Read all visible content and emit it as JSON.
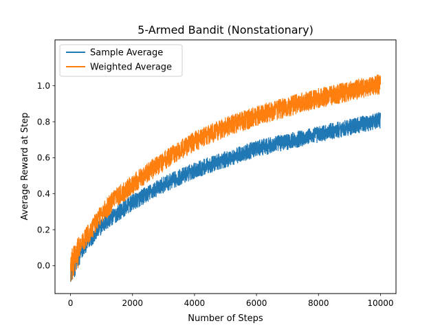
{
  "chart_data": {
    "type": "line",
    "title": "5-Armed Bandit (Nonstationary)",
    "xlabel": "Number of Steps",
    "ylabel": "Average Reward at Step",
    "xlim": [
      -500,
      10500
    ],
    "ylim": [
      -0.155,
      1.255
    ],
    "xticks": [
      0,
      2000,
      4000,
      6000,
      8000,
      10000
    ],
    "xtick_labels": [
      "0",
      "2000",
      "4000",
      "6000",
      "8000",
      "10000"
    ],
    "yticks": [
      0.0,
      0.2,
      0.4,
      0.6,
      0.8,
      1.0
    ],
    "ytick_labels": [
      "0.0",
      "0.2",
      "0.4",
      "0.6",
      "0.8",
      "1.0"
    ],
    "grid": false,
    "legend": "top-left",
    "x": [
      0,
      100,
      250,
      500,
      750,
      1000,
      1500,
      2000,
      2500,
      3000,
      3500,
      4000,
      4500,
      5000,
      5500,
      6000,
      6500,
      7000,
      7500,
      8000,
      8500,
      9000,
      9500,
      10000
    ],
    "series": [
      {
        "name": "Sample Average",
        "color": "#1f77b4",
        "noise_amplitude": 0.045,
        "values": [
          -0.02,
          0.0,
          0.05,
          0.12,
          0.17,
          0.22,
          0.29,
          0.35,
          0.4,
          0.45,
          0.49,
          0.53,
          0.56,
          0.59,
          0.62,
          0.65,
          0.67,
          0.69,
          0.71,
          0.73,
          0.75,
          0.77,
          0.79,
          0.81
        ]
      },
      {
        "name": "Weighted Average",
        "color": "#ff7f0e",
        "noise_amplitude": 0.055,
        "values": [
          -0.01,
          0.02,
          0.08,
          0.16,
          0.22,
          0.29,
          0.38,
          0.45,
          0.52,
          0.58,
          0.64,
          0.69,
          0.73,
          0.77,
          0.8,
          0.83,
          0.86,
          0.88,
          0.91,
          0.93,
          0.95,
          0.97,
          0.99,
          1.01
        ]
      }
    ]
  }
}
